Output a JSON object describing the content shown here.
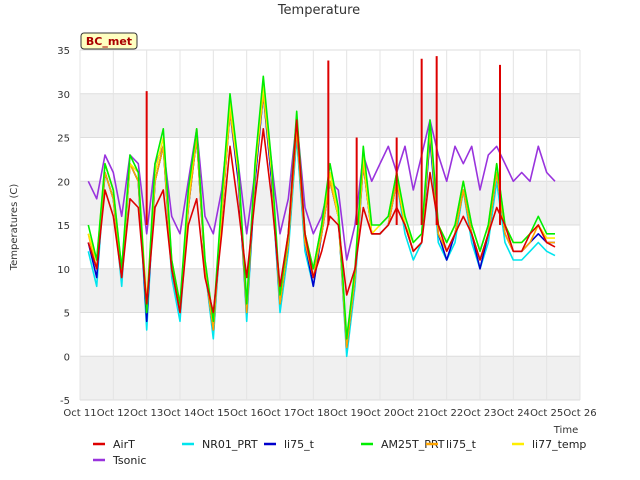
{
  "chart_data": {
    "type": "line",
    "title": "Temperature",
    "xlabel": "Time",
    "ylabel": "Temperatures (C)",
    "site_badge": "BC_met",
    "ylim": [
      -5,
      35
    ],
    "yticks": [
      -5,
      0,
      5,
      10,
      15,
      20,
      25,
      30,
      35
    ],
    "xlim": [
      0,
      15
    ],
    "xticks": [
      0,
      1,
      2,
      3,
      4,
      5,
      6,
      7,
      8,
      9,
      10,
      11,
      12,
      13,
      14,
      15
    ],
    "xtick_labels": [
      "Oct 11",
      "Oct 12",
      "Oct 13",
      "Oct 14",
      "Oct 15",
      "Oct 16",
      "Oct 17",
      "Oct 18",
      "Oct 19",
      "Oct 20",
      "Oct 21",
      "Oct 22",
      "Oct 23",
      "Oct 24",
      "Oct 25",
      "Oct 26"
    ],
    "grid": true,
    "background_bands": true,
    "legend_position": "bottom",
    "x": [
      0.25,
      0.5,
      0.75,
      1.0,
      1.25,
      1.5,
      1.75,
      2.0,
      2.25,
      2.5,
      2.75,
      3.0,
      3.25,
      3.5,
      3.75,
      4.0,
      4.25,
      4.5,
      4.75,
      5.0,
      5.25,
      5.5,
      5.75,
      6.0,
      6.25,
      6.5,
      6.75,
      7.0,
      7.25,
      7.5,
      7.75,
      8.0,
      8.25,
      8.5,
      8.75,
      9.0,
      9.25,
      9.5,
      9.75,
      10.0,
      10.25,
      10.5,
      10.75,
      11.0,
      11.25,
      11.5,
      11.75,
      12.0,
      12.25,
      12.5,
      12.75,
      13.0,
      13.25,
      13.5,
      13.75,
      14.0,
      14.25
    ],
    "series": [
      {
        "name": "AirT",
        "color": "#dd0000",
        "values": [
          13,
          10,
          19,
          16,
          9,
          18,
          17,
          6,
          17,
          19,
          10,
          5,
          15,
          18,
          9,
          5,
          14,
          24,
          17,
          9,
          18,
          26,
          18,
          8,
          14,
          27,
          14,
          9,
          12,
          16,
          15,
          7,
          10,
          17,
          14,
          14,
          15,
          17,
          15,
          12,
          13,
          21,
          15,
          12,
          14,
          16,
          14,
          11,
          14,
          17,
          15,
          12,
          12,
          14,
          15,
          13,
          12.5
        ],
        "spikes": [
          [
            2.0,
            30.3
          ],
          [
            7.45,
            33.8
          ],
          [
            8.3,
            25
          ],
          [
            9.5,
            25
          ],
          [
            10.25,
            34
          ],
          [
            10.7,
            34.3
          ],
          [
            12.6,
            33.3
          ]
        ]
      },
      {
        "name": "NR01_PRT",
        "color": "#00e5ee",
        "values": [
          12,
          8,
          21,
          18,
          8,
          22,
          20,
          3,
          20,
          24,
          9,
          4,
          17,
          25,
          10,
          2,
          16,
          28,
          21,
          4,
          20,
          30,
          20,
          5,
          12,
          25,
          12,
          8,
          14,
          20,
          16,
          0,
          8,
          22,
          14,
          14,
          15,
          20,
          14,
          11,
          13,
          25,
          13,
          11,
          13,
          19,
          13,
          10,
          13,
          20,
          13,
          11,
          11,
          12,
          13,
          12,
          11.5
        ]
      },
      {
        "name": "li75_t",
        "color": "#0000cc",
        "values": [
          13,
          9,
          21,
          18,
          9,
          22,
          20,
          4,
          20,
          24,
          10,
          5,
          17,
          25,
          10,
          3,
          16,
          28,
          20,
          5,
          20,
          30,
          20,
          6,
          13,
          26,
          13,
          8,
          14,
          20,
          16,
          1,
          9,
          22,
          14,
          14,
          15,
          20,
          15,
          12,
          13,
          25,
          14,
          11,
          14,
          19,
          14,
          10,
          14,
          21,
          14,
          12,
          12,
          13,
          14,
          13,
          13
        ]
      },
      {
        "name": "AM25T_PRT",
        "color": "#00ee00",
        "values": [
          15,
          11,
          22,
          19,
          10,
          23,
          21,
          5,
          22,
          26,
          11,
          6,
          19,
          26,
          11,
          4,
          18,
          30,
          22,
          6,
          22,
          32,
          22,
          7,
          14,
          28,
          14,
          10,
          15,
          22,
          17,
          2,
          10,
          24,
          15,
          15,
          16,
          21,
          16,
          13,
          14,
          27,
          15,
          13,
          15,
          20,
          15,
          12,
          15,
          22,
          15,
          13,
          13,
          14,
          16,
          14,
          14
        ]
      },
      {
        "name": "li75_t",
        "color": "#ffa500",
        "values": [
          14,
          10,
          21,
          18,
          9,
          22,
          20,
          5,
          20,
          24,
          10,
          5,
          17,
          25,
          10,
          3,
          16,
          28,
          21,
          5,
          21,
          30,
          21,
          6,
          13,
          26,
          13,
          9,
          14,
          20,
          16,
          1,
          9,
          22,
          14,
          14,
          15,
          20,
          15,
          12,
          13,
          26,
          14,
          12,
          14,
          19,
          14,
          11,
          14,
          21,
          14,
          12,
          12,
          13,
          15,
          13,
          13
        ]
      },
      {
        "name": "li77_temp",
        "color": "#ffee00",
        "values": [
          14,
          11,
          22,
          19,
          10,
          22,
          21,
          6,
          21,
          25,
          11,
          6,
          18,
          26,
          11,
          4,
          17,
          29,
          21,
          6,
          21,
          31,
          21,
          7,
          14,
          27,
          14,
          10,
          15,
          21,
          16,
          2,
          10,
          23,
          14,
          15,
          16,
          21,
          15,
          13,
          14,
          26,
          15,
          13,
          15,
          20,
          15,
          12,
          15,
          22,
          15,
          13,
          13,
          14,
          15,
          13.5,
          13.5
        ]
      },
      {
        "name": "Tsonic",
        "color": "#9933dd",
        "values": [
          20,
          18,
          23,
          21,
          16,
          23,
          22,
          14,
          22,
          24,
          16,
          14,
          20,
          26,
          16,
          14,
          19,
          28,
          22,
          14,
          21,
          30,
          22,
          14,
          18,
          27,
          17,
          14,
          16,
          20,
          19,
          11,
          15,
          23,
          20,
          22,
          24,
          21,
          24,
          19,
          23,
          27,
          23,
          20,
          24,
          22,
          24,
          19,
          23,
          24,
          22,
          20,
          21,
          20,
          24,
          21,
          20
        ]
      }
    ]
  }
}
